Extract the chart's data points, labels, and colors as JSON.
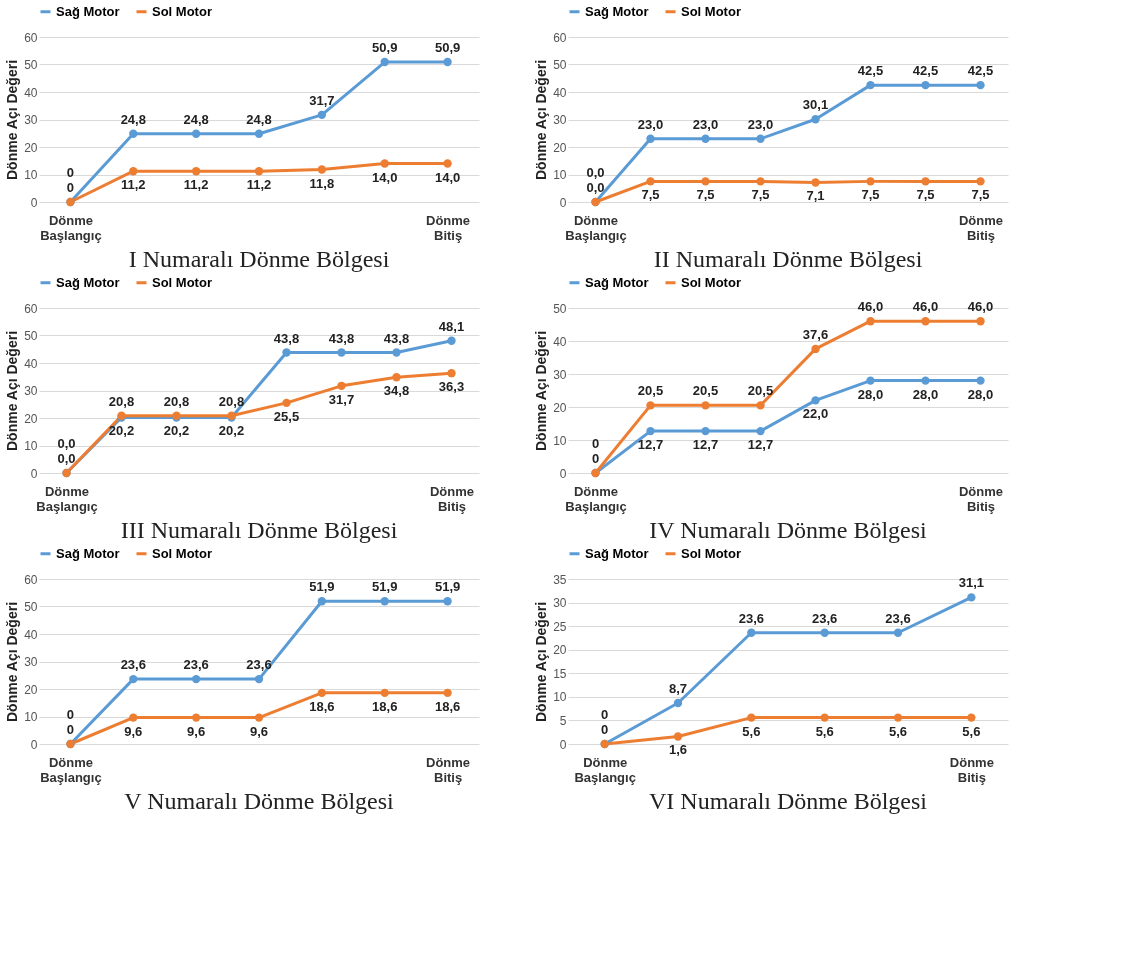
{
  "chart_data": [
    {
      "type": "line",
      "title": "I Numaralı Dönme Bölgesi",
      "ylabel": "Dönme Açı Değeri",
      "categories": [
        "Dönme Başlangıç",
        null,
        null,
        null,
        null,
        null,
        "Dönme Bitiş"
      ],
      "ylim": [
        0,
        60
      ],
      "yticks": [
        0,
        10,
        20,
        30,
        40,
        50,
        60
      ],
      "grid": "y",
      "legend": "top",
      "marker": "circle",
      "line_style": "solid",
      "series": [
        {
          "name": "Sağ Motor",
          "color": "#5b9bd5",
          "values": [
            0,
            24.8,
            24.8,
            24.8,
            31.7,
            50.9,
            50.9
          ],
          "value_labels": [
            "0",
            "24,8",
            "24,8",
            "24,8",
            "31,7",
            "50,9",
            "50,9"
          ]
        },
        {
          "name": "Sol Motor",
          "color": "#ed7d31",
          "values": [
            0,
            11.2,
            11.2,
            11.2,
            11.8,
            14.0,
            14.0
          ],
          "value_labels": [
            "0",
            "11,2",
            "11,2",
            "11,2",
            "11,8",
            "14,0",
            "14,0"
          ]
        }
      ]
    },
    {
      "type": "line",
      "title": "II Numaralı Dönme Bölgesi",
      "ylabel": "Dönme Açı Değeri",
      "categories": [
        "Dönme Başlangıç",
        null,
        null,
        null,
        null,
        null,
        null,
        "Dönme Bitiş"
      ],
      "ylim": [
        0,
        60
      ],
      "yticks": [
        0,
        10,
        20,
        30,
        40,
        50,
        60
      ],
      "grid": "y",
      "legend": "top",
      "marker": "circle",
      "line_style": "solid",
      "series": [
        {
          "name": "Sağ Motor",
          "color": "#5b9bd5",
          "values": [
            0,
            23.0,
            23.0,
            23.0,
            30.1,
            42.5,
            42.5,
            42.5
          ],
          "value_labels": [
            "0,0",
            "23,0",
            "23,0",
            "23,0",
            "30,1",
            "42,5",
            "42,5",
            "42,5"
          ]
        },
        {
          "name": "Sol Motor",
          "color": "#ed7d31",
          "values": [
            0,
            7.5,
            7.5,
            7.5,
            7.1,
            7.5,
            7.5,
            7.5
          ],
          "value_labels": [
            "0,0",
            "7,5",
            "7,5",
            "7,5",
            "7,1",
            "7,5",
            "7,5",
            "7,5"
          ]
        }
      ]
    },
    {
      "type": "line",
      "title": "III Numaralı Dönme Bölgesi",
      "ylabel": "Dönme Açı Değeri",
      "categories": [
        "Dönme Başlangıç",
        null,
        null,
        null,
        null,
        null,
        null,
        "Dönme Bitiş"
      ],
      "ylim": [
        0,
        60
      ],
      "yticks": [
        0,
        10,
        20,
        30,
        40,
        50,
        60
      ],
      "grid": "y",
      "legend": "top",
      "marker": "circle",
      "line_style": "solid",
      "series": [
        {
          "name": "Sağ Motor",
          "color": "#5b9bd5",
          "values": [
            0,
            20.2,
            20.2,
            20.2,
            43.8,
            43.8,
            43.8,
            48.1
          ],
          "value_labels": [
            "0,0",
            "20,2",
            "20,2",
            "20,2",
            "43,8",
            "43,8",
            "43,8",
            "48,1"
          ]
        },
        {
          "name": "Sol Motor",
          "color": "#ed7d31",
          "values": [
            0,
            20.8,
            20.8,
            20.8,
            25.5,
            31.7,
            34.8,
            36.3
          ],
          "value_labels": [
            "0,0",
            "20,8",
            "20,8",
            "20,8",
            "25,5",
            "31,7",
            "34,8",
            "36,3"
          ]
        }
      ]
    },
    {
      "type": "line",
      "title": "IV Numaralı Dönme Bölgesi",
      "ylabel": "Dönme Açı Değeri",
      "categories": [
        "Dönme Başlangıç",
        null,
        null,
        null,
        null,
        null,
        null,
        "Dönme Bitiş"
      ],
      "ylim": [
        0,
        50
      ],
      "yticks": [
        0,
        10,
        20,
        30,
        40,
        50
      ],
      "grid": "y",
      "legend": "top",
      "marker": "circle",
      "line_style": "solid",
      "series": [
        {
          "name": "Sağ Motor",
          "color": "#5b9bd5",
          "values": [
            0,
            12.7,
            12.7,
            12.7,
            22.0,
            28.0,
            28.0,
            28.0
          ],
          "value_labels": [
            "0",
            "12,7",
            "12,7",
            "12,7",
            "22,0",
            "28,0",
            "28,0",
            "28,0"
          ]
        },
        {
          "name": "Sol Motor",
          "color": "#ed7d31",
          "values": [
            0,
            20.5,
            20.5,
            20.5,
            37.6,
            46.0,
            46.0,
            46.0
          ],
          "value_labels": [
            "0",
            "20,5",
            "20,5",
            "20,5",
            "37,6",
            "46,0",
            "46,0",
            "46,0"
          ]
        }
      ]
    },
    {
      "type": "line",
      "title": "V Numaralı Dönme Bölgesi",
      "ylabel": "Dönme Açı Değeri",
      "categories": [
        "Dönme Başlangıç",
        null,
        null,
        null,
        null,
        null,
        "Dönme Bitiş"
      ],
      "ylim": [
        0,
        60
      ],
      "yticks": [
        0,
        10,
        20,
        30,
        40,
        50,
        60
      ],
      "grid": "y",
      "legend": "top",
      "marker": "circle",
      "line_style": "solid",
      "series": [
        {
          "name": "Sağ Motor",
          "color": "#5b9bd5",
          "values": [
            0,
            23.6,
            23.6,
            23.6,
            51.9,
            51.9,
            51.9
          ],
          "value_labels": [
            "0",
            "23,6",
            "23,6",
            "23,6",
            "51,9",
            "51,9",
            "51,9"
          ]
        },
        {
          "name": "Sol Motor",
          "color": "#ed7d31",
          "values": [
            0,
            9.6,
            9.6,
            9.6,
            18.6,
            18.6,
            18.6
          ],
          "value_labels": [
            "0",
            "9,6",
            "9,6",
            "9,6",
            "18,6",
            "18,6",
            "18,6"
          ]
        }
      ]
    },
    {
      "type": "line",
      "title": "VI Numaralı Dönme Bölgesi",
      "ylabel": "Dönme Açı Değeri",
      "categories": [
        "Dönme Başlangıç",
        null,
        null,
        null,
        null,
        "Dönme Bitiş"
      ],
      "ylim": [
        0,
        35
      ],
      "yticks": [
        0,
        5,
        10,
        15,
        20,
        25,
        30,
        35
      ],
      "grid": "y",
      "legend": "top",
      "marker": "circle",
      "line_style": "solid",
      "series": [
        {
          "name": "Sağ Motor",
          "color": "#5b9bd5",
          "values": [
            0,
            8.7,
            23.6,
            23.6,
            23.6,
            31.1
          ],
          "value_labels": [
            "0",
            "8,7",
            "23,6",
            "23,6",
            "23,6",
            "31,1"
          ]
        },
        {
          "name": "Sol Motor",
          "color": "#ed7d31",
          "values": [
            0,
            1.6,
            5.6,
            5.6,
            5.6,
            5.6
          ],
          "value_labels": [
            "0",
            "1,6",
            "5,6",
            "5,6",
            "5,6",
            "5,6"
          ]
        }
      ]
    }
  ]
}
